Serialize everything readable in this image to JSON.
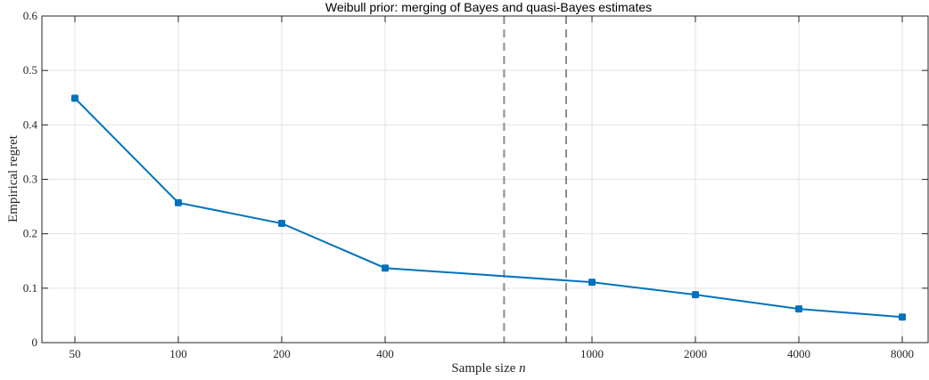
{
  "chart_data": {
    "type": "line",
    "title": "Weibull prior: merging of Bayes and quasi-Bayes estimates",
    "xlabel_text": "Sample size ",
    "xlabel_var": "n",
    "ylabel": "Empirical regret",
    "categories": [
      "50",
      "100",
      "200",
      "400",
      "1000",
      "2000",
      "4000",
      "8000"
    ],
    "category_slots": [
      0,
      1,
      2,
      3,
      5,
      6,
      7,
      8
    ],
    "series": [
      {
        "values": [
          0.449,
          0.257,
          0.219,
          0.137,
          0.111,
          0.088,
          0.062,
          0.047
        ],
        "color": "#0072BD"
      }
    ],
    "vertical_dashed_lines_slots": [
      4.15,
      4.75
    ],
    "ylim": [
      0,
      0.6
    ],
    "yticks": [
      "0",
      "0.1",
      "0.2",
      "0.3",
      "0.4",
      "0.5",
      "0.6"
    ],
    "ytick_values": [
      0,
      0.1,
      0.2,
      0.3,
      0.4,
      0.5,
      0.6
    ],
    "grid": true
  }
}
